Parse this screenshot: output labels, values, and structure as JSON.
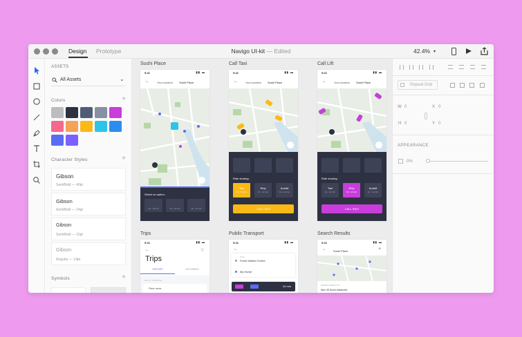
{
  "titlebar": {
    "tab_design": "Design",
    "tab_prototype": "Prototype",
    "doc_title": "Navigo UI-kit",
    "separator": "—",
    "status": "Edited",
    "zoom": "42.4%"
  },
  "assets": {
    "header": "ASSETS",
    "filter": "All Assets",
    "colors_label": "Colors",
    "colors": [
      "#bdbdbd",
      "#2d3142",
      "#4f5d75",
      "#8590a3",
      "#c83ddb",
      "#f7688f",
      "#f4a259",
      "#fbb917",
      "#2ec4e8",
      "#2d8cf0",
      "#5b6cf4",
      "#7b61ff"
    ],
    "char_styles_label": "Character Styles",
    "styles": [
      {
        "name": "Gibson",
        "meta": "SemiBold — 40pt"
      },
      {
        "name": "Gibson",
        "meta": "SemiBold — 24pt"
      },
      {
        "name": "Gibson",
        "meta": "SemiBold — 16pt"
      },
      {
        "name": "Gibson",
        "meta": "Regular — 14pt"
      }
    ],
    "symbols_label": "Symbols"
  },
  "artboards": {
    "sushi": {
      "label": "Sushi Place",
      "time": "9:41",
      "from": "Your location",
      "to": "Sushi Place",
      "option_title": "Select an option:",
      "option_cap": "10 - 12 min"
    },
    "taxi": {
      "label": "Call Taxi",
      "time": "9:41",
      "from": "Your location",
      "to": "Sushi Place",
      "ride_label": "Ride sharing:",
      "cards": [
        "Taxi",
        "Ridy",
        "AutoM"
      ],
      "card_cap": "10 - 12 min",
      "cta": "CALL TAXI",
      "accent": "#fbb917"
    },
    "lift": {
      "label": "Call Lift",
      "time": "9:41",
      "from": "Your location",
      "to": "Sushi Place",
      "ride_label": "Ride sharing:",
      "cards": [
        "Taxi",
        "Ridy",
        "AutoM"
      ],
      "card_cap": "10 - 12 min",
      "cta": "CALL RIDY",
      "accent": "#c83ddb"
    },
    "trips": {
      "label": "Trips",
      "time": "9:41",
      "title": "Trips",
      "tab1": "HISTORY",
      "tab2": "UPCOMING",
      "date": "NOV 8 - 10:20 PM",
      "row": "Place name"
    },
    "transport": {
      "label": "Public Transport",
      "time": "9:41",
      "from_cap": "From",
      "from": "Fresh Market Centre",
      "to": "My Home",
      "duration": "42 min"
    },
    "search": {
      "label": "Search Results",
      "time": "9:41",
      "query": "Sushi Place",
      "results_label": "SEARCH RESULTS",
      "result": "Nice 45 Sushi restaurant"
    }
  },
  "props": {
    "repeat_grid": "Repeat Grid",
    "w_label": "W",
    "w": "0",
    "x_label": "X",
    "x": "0",
    "h_label": "H",
    "h": "0",
    "y_label": "Y",
    "y": "0",
    "appearance": "APPEARANCE",
    "opacity": "0%"
  }
}
